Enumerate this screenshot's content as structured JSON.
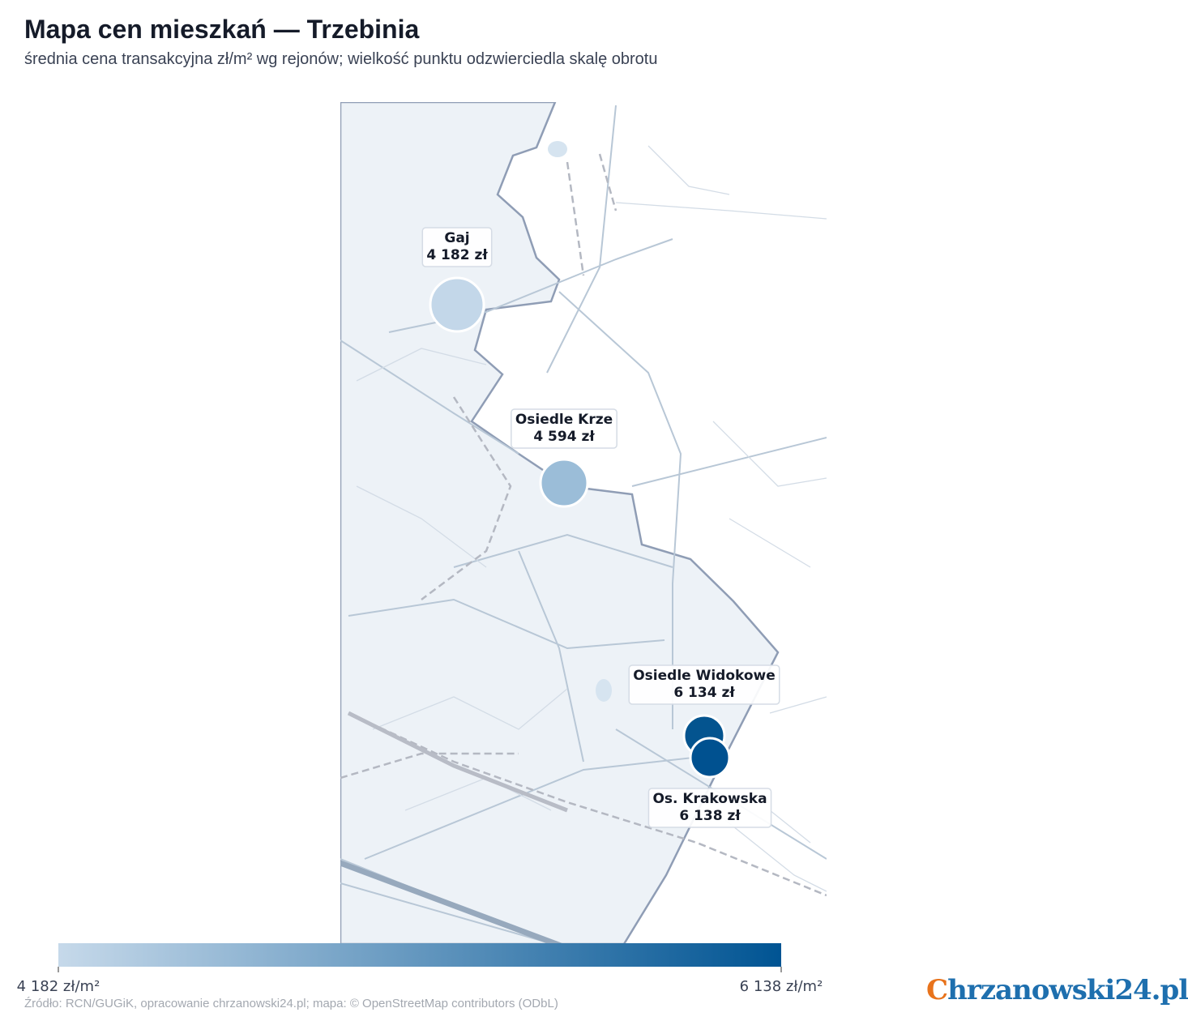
{
  "title": "Mapa cen mieszkań — Trzebinia",
  "subtitle": "średnia cena transakcyjna zł/m² wg rejonów; wielkość punktu odzwierciedla skalę obrotu",
  "points": [
    {
      "name": "Gaj",
      "value": 4182,
      "value_label": "4 182 zł",
      "size": 33,
      "color": "#c3d7e9"
    },
    {
      "name": "Osiedle Krze",
      "value": 4594,
      "value_label": "4 594 zł",
      "size": 29,
      "color": "#9bbdd8"
    },
    {
      "name": "Osiedle Widokowe",
      "value": 6134,
      "value_label": "6 134 zł",
      "size": 25,
      "color": "#04548f"
    },
    {
      "name": "Os. Krakowska",
      "value": 6138,
      "value_label": "6 138 zł",
      "size": 24,
      "color": "#005190"
    }
  ],
  "colorbar": {
    "min": 4182,
    "max": 6138,
    "min_label": "4 182 zł/m²",
    "max_label": "6 138 zł/m²",
    "colors": [
      "#c6d9ea",
      "#005493"
    ]
  },
  "source": "Źródło: RCN/GUGiK, opracowanie chrzanowski24.pl; mapa: © OpenStreetMap contributors (ODbL)",
  "logo": "Chrzanowski24.pl"
}
